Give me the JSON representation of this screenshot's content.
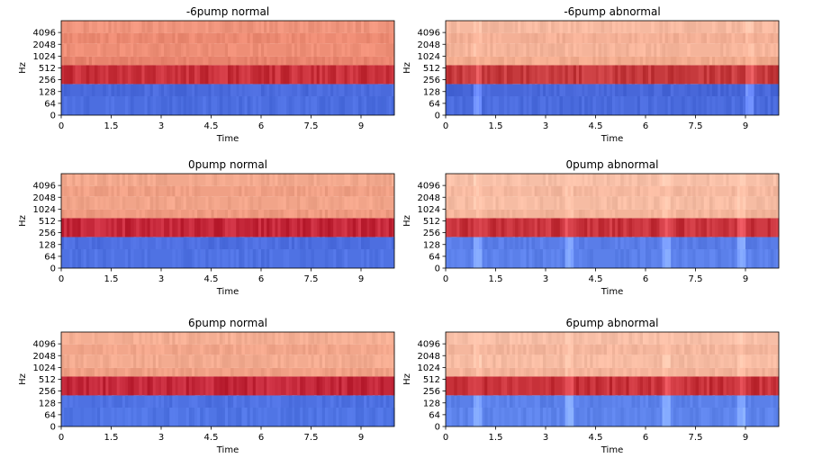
{
  "chart_data": [
    {
      "type": "heatmap",
      "title": "-6pump normal",
      "xlabel": "Time",
      "ylabel": "Hz",
      "xlim": [
        0,
        10
      ],
      "x_ticks": [
        "0",
        "1.5",
        "3",
        "4.5",
        "6",
        "7.5",
        "9"
      ],
      "y_ticks": [
        "0",
        "64",
        "128",
        "256",
        "512",
        "1024",
        "2048",
        "4096"
      ],
      "band_colors": [
        "#4c6ee0",
        "#4a6adc",
        "#c8303a",
        "#e8836d",
        "#ee8e76",
        "#ec8a72",
        "#ef947c"
      ],
      "events": []
    },
    {
      "type": "heatmap",
      "title": "-6pump abnormal",
      "xlabel": "Time",
      "ylabel": "Hz",
      "xlim": [
        0,
        10
      ],
      "x_ticks": [
        "0",
        "1.5",
        "3",
        "4.5",
        "6",
        "7.5",
        "9"
      ],
      "y_ticks": [
        "0",
        "64",
        "128",
        "256",
        "512",
        "1024",
        "2048",
        "4096"
      ],
      "band_colors": [
        "#4a6bdd",
        "#4867d9",
        "#c63a3d",
        "#f2ab8e",
        "#f5b49a",
        "#f4b096",
        "#f6b9a0"
      ],
      "events": [
        0.95,
        9.05
      ]
    },
    {
      "type": "heatmap",
      "title": "0pump normal",
      "xlabel": "Time",
      "ylabel": "Hz",
      "xlim": [
        0,
        10
      ],
      "x_ticks": [
        "0",
        "1.5",
        "3",
        "4.5",
        "6",
        "7.5",
        "9"
      ],
      "y_ticks": [
        "0",
        "64",
        "128",
        "256",
        "512",
        "1024",
        "2048",
        "4096"
      ],
      "band_colors": [
        "#4f72e3",
        "#4d6ee0",
        "#c5283a",
        "#ef9a80",
        "#f1a489",
        "#f0a085",
        "#f2a88d"
      ],
      "events": []
    },
    {
      "type": "heatmap",
      "title": "0pump abnormal",
      "xlabel": "Time",
      "ylabel": "Hz",
      "xlim": [
        0,
        10
      ],
      "x_ticks": [
        "0",
        "1.5",
        "3",
        "4.5",
        "6",
        "7.5",
        "9"
      ],
      "y_ticks": [
        "0",
        "64",
        "128",
        "256",
        "512",
        "1024",
        "2048",
        "4096"
      ],
      "band_colors": [
        "#5b80ea",
        "#5a7de8",
        "#c8333c",
        "#f4b49a",
        "#f6bca3",
        "#f5b89f",
        "#f7bfa7"
      ],
      "events": [
        0.9,
        3.7,
        6.6,
        8.8
      ]
    },
    {
      "type": "heatmap",
      "title": "6pump normal",
      "xlabel": "Time",
      "ylabel": "Hz",
      "xlim": [
        0,
        10
      ],
      "x_ticks": [
        "0",
        "1.5",
        "3",
        "4.5",
        "6",
        "7.5",
        "9"
      ],
      "y_ticks": [
        "0",
        "64",
        "128",
        "256",
        "512",
        "1024",
        "2048",
        "4096"
      ],
      "band_colors": [
        "#5075e5",
        "#4e71e2",
        "#c4283a",
        "#f0a085",
        "#f3ab90",
        "#f2a68b",
        "#f4ae93"
      ],
      "events": []
    },
    {
      "type": "heatmap",
      "title": "6pump abnormal",
      "xlabel": "Time",
      "ylabel": "Hz",
      "xlim": [
        0,
        10
      ],
      "x_ticks": [
        "0",
        "1.5",
        "3",
        "4.5",
        "6",
        "7.5",
        "9"
      ],
      "y_ticks": [
        "0",
        "64",
        "128",
        "256",
        "512",
        "1024",
        "2048",
        "4096"
      ],
      "band_colors": [
        "#5d83eb",
        "#5b80e9",
        "#c73139",
        "#f4b39a",
        "#f6bba2",
        "#f5b79e",
        "#f7bea6"
      ],
      "events": [
        0.9,
        3.7,
        6.6,
        8.8
      ]
    }
  ]
}
